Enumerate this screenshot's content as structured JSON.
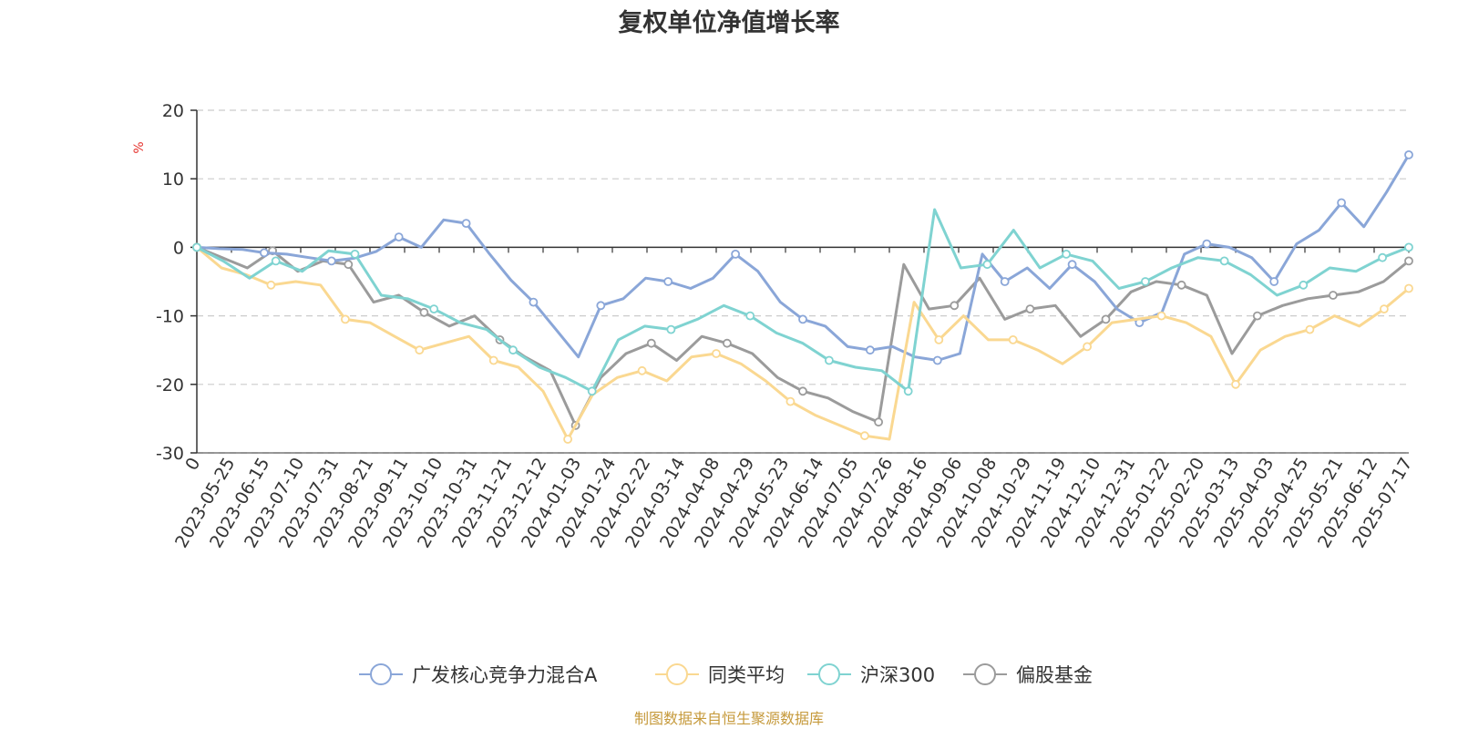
{
  "chart_data": {
    "type": "line",
    "title": "复权单位净值增长率",
    "ylabel": "%",
    "ylim": [
      -30,
      20
    ],
    "yticks": [
      20,
      10,
      0,
      -10,
      -20,
      -30
    ],
    "grid": true,
    "legend_position": "bottom",
    "x_tick_labels": [
      "0",
      "2023-05-25",
      "2023-06-15",
      "2023-07-10",
      "2023-07-31",
      "2023-08-21",
      "2023-09-11",
      "2023-10-10",
      "2023-10-31",
      "2023-11-21",
      "2023-12-12",
      "2024-01-03",
      "2024-01-24",
      "2024-02-22",
      "2024-03-14",
      "2024-04-08",
      "2024-04-29",
      "2024-05-23",
      "2024-06-14",
      "2024-07-05",
      "2024-07-26",
      "2024-08-16",
      "2024-09-06",
      "2024-10-08",
      "2024-10-29",
      "2024-11-19",
      "2024-12-10",
      "2024-12-31",
      "2025-01-22",
      "2025-02-20",
      "2025-03-13",
      "2025-04-03",
      "2025-04-25",
      "2025-05-21",
      "2025-06-12",
      "2025-07-17"
    ],
    "series": [
      {
        "name": "广发核心竞争力混合A",
        "color": "#8aa6d8",
        "values": [
          0,
          -0.2,
          -0.3,
          -0.8,
          -1.0,
          -1.5,
          -2.0,
          -1.6,
          -0.6,
          1.5,
          0,
          4.0,
          3.5,
          -0.8,
          -4.8,
          -8.0,
          -12.0,
          -16.0,
          -8.5,
          -7.5,
          -4.5,
          -5.0,
          -6.0,
          -4.5,
          -1.0,
          -3.5,
          -8.0,
          -10.5,
          -11.5,
          -14.5,
          -15.0,
          -14.5,
          -16.0,
          -16.5,
          -15.5,
          -1.0,
          -5.0,
          -3.0,
          -6.0,
          -2.5,
          -5.0,
          -9.0,
          -11.0,
          -9.5,
          -1.0,
          0.5,
          0.0,
          -1.5,
          -5.0,
          0.5,
          2.5,
          6.5,
          3.0,
          8.0,
          13.5
        ]
      },
      {
        "name": "同类平均",
        "color": "#fad891",
        "values": [
          0,
          -3.0,
          -4.0,
          -5.5,
          -5.0,
          -5.5,
          -10.5,
          -11.0,
          -13.0,
          -15.0,
          -14.0,
          -13.0,
          -16.5,
          -17.5,
          -21.0,
          -28.0,
          -21.5,
          -19.0,
          -18.0,
          -19.5,
          -16.0,
          -15.5,
          -17.0,
          -19.5,
          -22.5,
          -24.5,
          -26.0,
          -27.5,
          -28.0,
          -8.0,
          -13.5,
          -10.0,
          -13.5,
          -13.5,
          -15.0,
          -17.0,
          -14.5,
          -11.0,
          -10.5,
          -10.0,
          -11.0,
          -13.0,
          -20.0,
          -15.0,
          -13.0,
          -12.0,
          -10.0,
          -11.5,
          -9.0,
          -6.0
        ]
      },
      {
        "name": "沪深300",
        "color": "#7fd3d1",
        "values": [
          0,
          -2.0,
          -4.5,
          -2.0,
          -3.5,
          -0.5,
          -1.0,
          -7.0,
          -7.5,
          -9.0,
          -11.0,
          -12.0,
          -15.0,
          -17.5,
          -19.0,
          -21.0,
          -13.5,
          -11.5,
          -12.0,
          -10.5,
          -8.5,
          -10.0,
          -12.5,
          -14.0,
          -16.5,
          -17.5,
          -18.0,
          -21.0,
          5.5,
          -3.0,
          -2.5,
          2.5,
          -3.0,
          -1.0,
          -2.0,
          -6.0,
          -5.0,
          -3.0,
          -1.5,
          -2.0,
          -4.0,
          -7.0,
          -5.5,
          -3.0,
          -3.5,
          -1.5,
          0.0
        ]
      },
      {
        "name": "偏股基金",
        "color": "#9b9b9b",
        "values": [
          0,
          -1.5,
          -3.0,
          -0.5,
          -3.5,
          -2.0,
          -2.5,
          -8.0,
          -7.0,
          -9.5,
          -11.5,
          -10.0,
          -13.5,
          -16.0,
          -18.0,
          -26.0,
          -19.0,
          -15.5,
          -14.0,
          -16.5,
          -13.0,
          -14.0,
          -15.5,
          -19.0,
          -21.0,
          -22.0,
          -24.0,
          -25.5,
          -2.5,
          -9.0,
          -8.5,
          -4.5,
          -10.5,
          -9.0,
          -8.5,
          -13.0,
          -10.5,
          -6.5,
          -5.0,
          -5.5,
          -7.0,
          -15.5,
          -10.0,
          -8.5,
          -7.5,
          -7.0,
          -6.5,
          -5.0,
          -2.0
        ]
      }
    ]
  },
  "source_note": "制图数据来自恒生聚源数据库"
}
